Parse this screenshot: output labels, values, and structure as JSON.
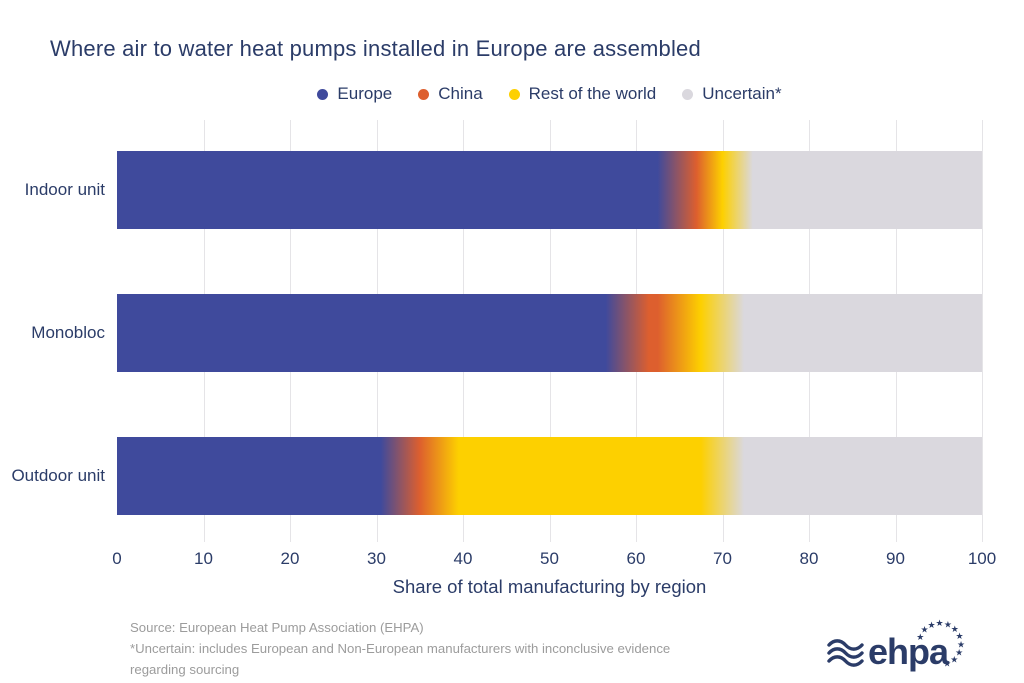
{
  "title": "Where air to water heat pumps installed in Europe are assembled",
  "legend": [
    {
      "label": "Europe",
      "color": "#3F4A9C"
    },
    {
      "label": "China",
      "color": "#DD5F2E"
    },
    {
      "label": "Rest of the world",
      "color": "#FDD000"
    },
    {
      "label": "Uncertain*",
      "color": "#DAD8DE"
    }
  ],
  "chart_data": {
    "type": "bar",
    "orientation": "horizontal",
    "stacked": true,
    "title": "Where air to water heat pumps installed in Europe are assembled",
    "categories": [
      "Indoor unit",
      "Monobloc",
      "Outdoor unit"
    ],
    "series": [
      {
        "name": "Europe",
        "color": "#3F4A9C",
        "values": [
          65,
          59,
          33
        ]
      },
      {
        "name": "China",
        "color": "#DD5F2E",
        "values": [
          4,
          6,
          4
        ]
      },
      {
        "name": "Rest of the world",
        "color": "#FDD000",
        "values": [
          2,
          5,
          33
        ]
      },
      {
        "name": "Uncertain*",
        "color": "#DAD8DE",
        "values": [
          29,
          30,
          30
        ]
      }
    ],
    "xlabel": "Share of total manufacturing by region",
    "ylabel": "",
    "x_ticks": [
      0,
      10,
      20,
      30,
      40,
      50,
      60,
      70,
      80,
      90,
      100
    ],
    "xlim": [
      0,
      100
    ],
    "grid": "vertical",
    "legend_position": "top"
  },
  "source": {
    "line1": "Source: European Heat Pump Association (EHPA)",
    "line2": "*Uncertain: includes European and Non-European manufacturers with inconclusive evidence",
    "line3": "regarding sourcing"
  },
  "logo": {
    "text": "ehpa"
  },
  "colors": {
    "navy_text": "#2B3C68",
    "gridline": "#E5E4E7",
    "source_gray": "#9C9C9C",
    "background": "#FFFFFF"
  }
}
